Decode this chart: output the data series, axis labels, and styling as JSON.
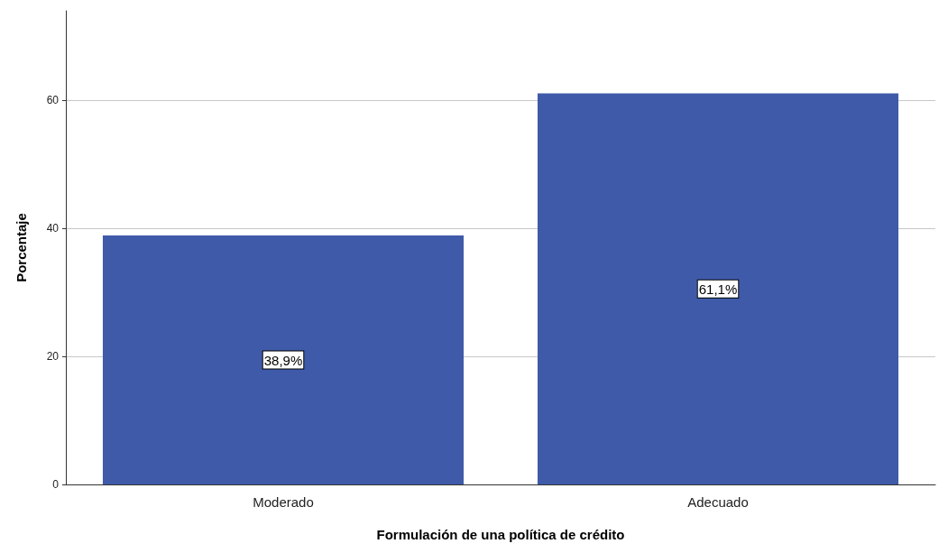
{
  "chart_data": {
    "type": "bar",
    "xlabel": "Formulación de una política de crédito",
    "ylabel": "Porcentaje",
    "categories": [
      "Moderado",
      "Adecuado"
    ],
    "values": [
      38.9,
      61.1
    ],
    "value_labels": [
      "38,9%",
      "61,1%"
    ],
    "color": "#3f5aa8",
    "ylim": [
      0,
      74
    ],
    "yticks": [
      0,
      20,
      40,
      60
    ],
    "grid": "y"
  }
}
